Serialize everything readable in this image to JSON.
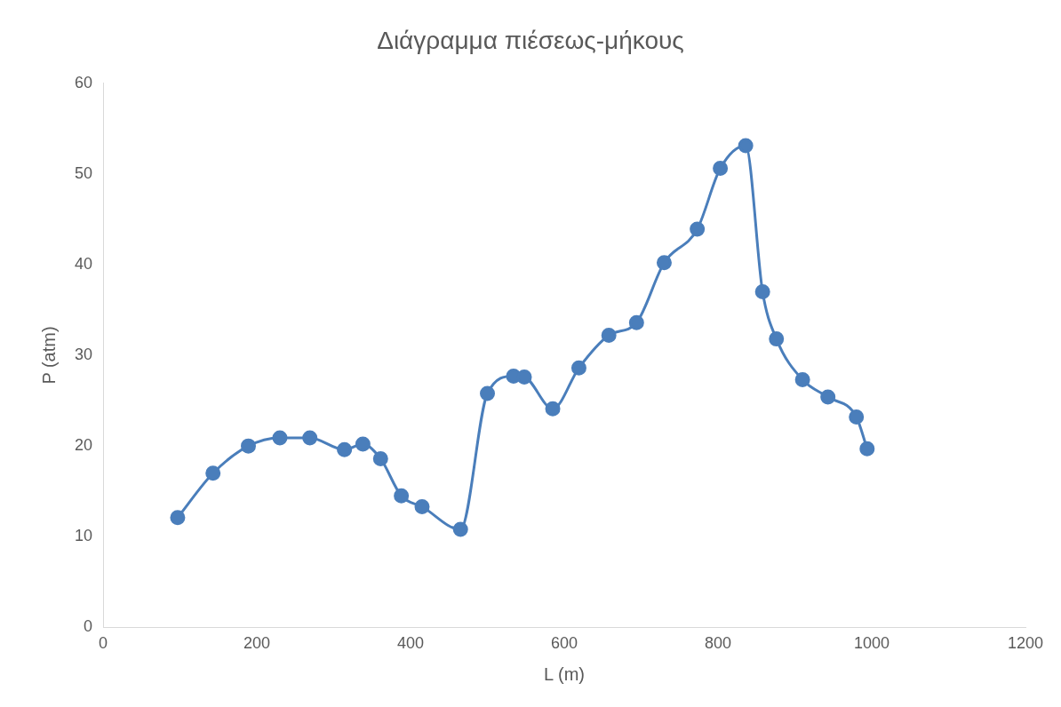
{
  "chart_data": {
    "type": "line",
    "title": "Διάγραμμα πιέσεως-μήκους",
    "xlabel": "L (m)",
    "ylabel": "P (atm)",
    "x": [
      97,
      143,
      189,
      230,
      269,
      314,
      338,
      361,
      388,
      415,
      465,
      500,
      534,
      548,
      585,
      619,
      658,
      694,
      730,
      773,
      803,
      836,
      858,
      876,
      910,
      943,
      980,
      994
    ],
    "series": [
      {
        "color": "#4a7ebb",
        "values": [
          12.1,
          17.0,
          20.0,
          20.9,
          20.9,
          19.6,
          20.2,
          18.6,
          14.5,
          13.3,
          10.8,
          25.8,
          27.7,
          27.6,
          24.1,
          28.6,
          32.2,
          33.6,
          40.2,
          43.9,
          50.6,
          53.1,
          37.0,
          31.8,
          27.3,
          25.4,
          23.2,
          19.7
        ]
      }
    ],
    "xlim": [
      0,
      1200
    ],
    "xticks": [
      0,
      200,
      400,
      600,
      800,
      1000,
      1200
    ],
    "ylim": [
      0,
      60
    ],
    "yticks": [
      0,
      10,
      20,
      30,
      40,
      50,
      60
    ],
    "grid": false,
    "legend": false,
    "marker": "circle",
    "line_style": "solid"
  }
}
